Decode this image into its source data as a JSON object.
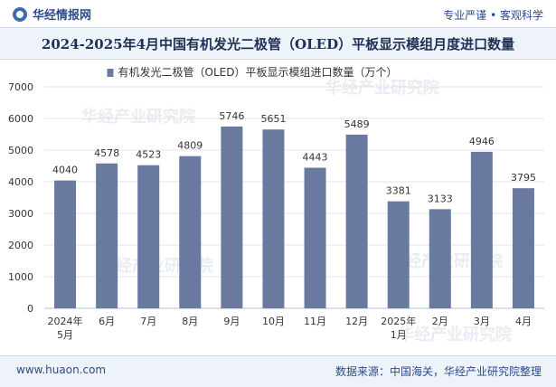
{
  "header": {
    "brand": "华经情报网",
    "tagline": "专业严谨 • 客观科学"
  },
  "title": "2024-2025年4月中国有机发光二极管（OLED）平板显示模组月度进口数量",
  "footer": {
    "website": "www.huaon.com",
    "source": "数据来源：中国海关，华经产业研究院整理"
  },
  "watermarks": [
    "华经产业研究院",
    "华经产业研究院",
    "华经产业研究院",
    "华经产业研究院",
    "华经产业研究院"
  ],
  "colors": {
    "bar": "#6979a0",
    "grid": "#dfe3ea",
    "title_band": "#eef2f9",
    "text": "#333333"
  },
  "chart_data": {
    "type": "bar",
    "title": "2024-2025年4月中国有机发光二极管（OLED）平板显示模组月度进口数量",
    "legend": "有机发光二极管（OLED）平板显示模组进口数量（万个）",
    "legend_position": "top-center",
    "categories": [
      [
        "2024年",
        "5月"
      ],
      [
        "6月"
      ],
      [
        "7月"
      ],
      [
        "8月"
      ],
      [
        "9月"
      ],
      [
        "10月"
      ],
      [
        "11月"
      ],
      [
        "12月"
      ],
      [
        "2025年",
        "1月"
      ],
      [
        "2月"
      ],
      [
        "3月"
      ],
      [
        "4月"
      ]
    ],
    "values": [
      4040,
      4578,
      4523,
      4809,
      5746,
      5651,
      4443,
      5489,
      3381,
      3133,
      4946,
      3795
    ],
    "ylim": [
      0,
      7000
    ],
    "yticks": [
      0,
      1000,
      2000,
      3000,
      4000,
      5000,
      6000,
      7000
    ],
    "grid": true,
    "xlabel": "",
    "ylabel": ""
  }
}
